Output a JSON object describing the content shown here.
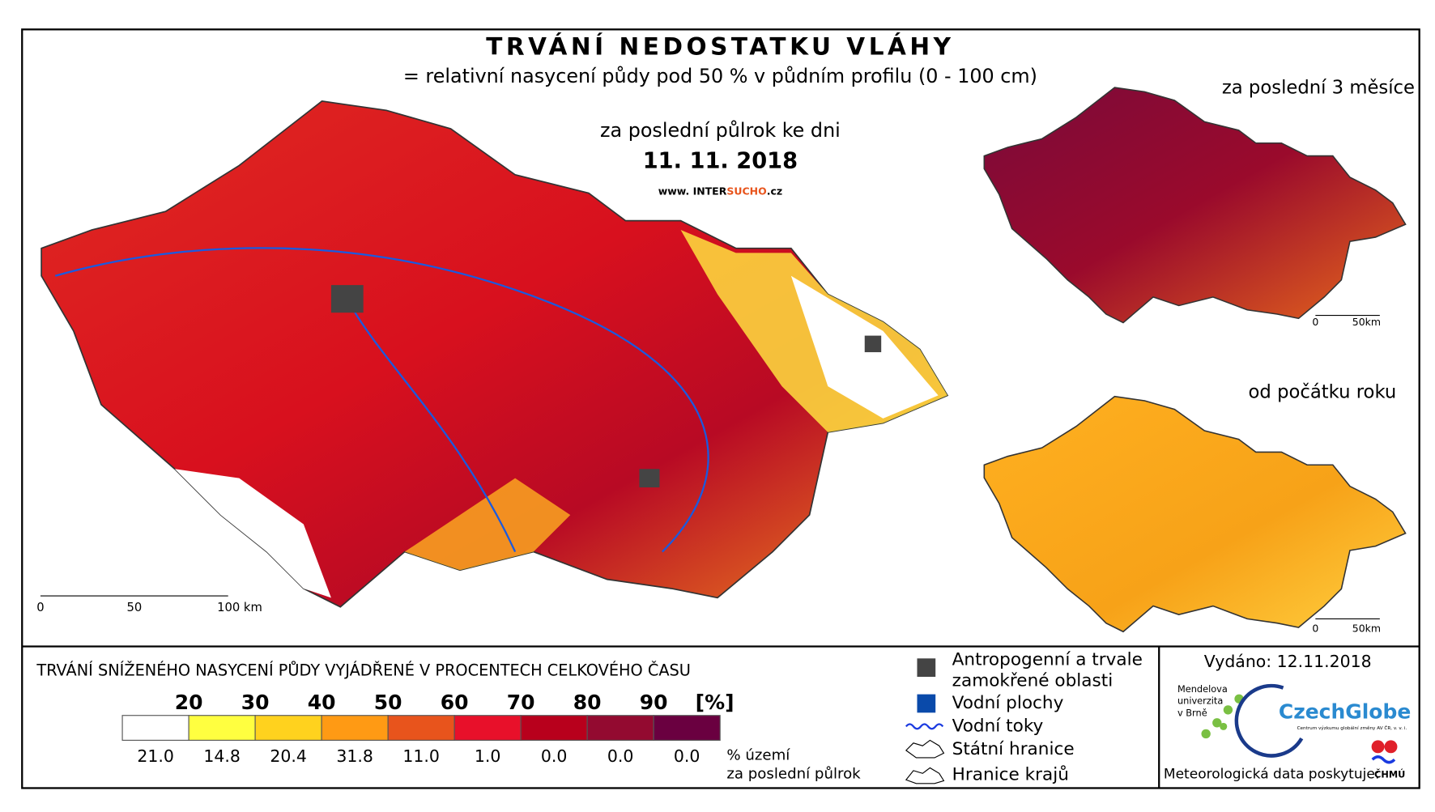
{
  "header": {
    "title": "TRVÁNÍ NEDOSTATKU VLÁHY",
    "subtitle": "= relativní nasycení půdy pod 50 % v půdním profilu (0 - 100 cm)",
    "period": "za poslední půlrok ke dni",
    "date": "11. 11. 2018",
    "web": [
      "www. INTER",
      "SUCHO",
      ".cz"
    ]
  },
  "maps": {
    "main_scale": [
      "0",
      "50",
      "100 km"
    ],
    "inset_top": {
      "title": "za poslední 3 měsíce",
      "scale": [
        "0",
        "50km"
      ]
    },
    "inset_bottom": {
      "title": "od počátku roku",
      "scale": [
        "0",
        "50km"
      ]
    }
  },
  "legend": {
    "heading": "TRVÁNÍ SNÍŽENÉHO NASYCENÍ PŮDY VYJÁDŘENÉ V PROCENTECH CELKOVÉHO ČASU",
    "thresholds": [
      "20",
      "30",
      "40",
      "50",
      "60",
      "70",
      "80",
      "90"
    ],
    "unit": "[%]",
    "colors": [
      "#ffffff",
      "#ffff40",
      "#ffd21e",
      "#ff9a14",
      "#e8541c",
      "#e8102a",
      "#b8001c",
      "#930a30",
      "#6a0040"
    ],
    "shares": [
      "21.0",
      "14.8",
      "20.4",
      "31.8",
      "11.0",
      "1.0",
      "0.0",
      "0.0",
      "0.0"
    ],
    "shares_label": [
      "% území",
      "za poslední půlrok"
    ],
    "symbols": [
      {
        "label": [
          "Antropogenní a trvale",
          "zamokřené oblasti"
        ]
      },
      {
        "label": [
          "Vodní plochy"
        ]
      },
      {
        "label": [
          "Vodní toky"
        ]
      },
      {
        "label": [
          "Státní hranice"
        ]
      },
      {
        "label": [
          "Hranice krajů"
        ]
      }
    ]
  },
  "footer": {
    "issued": "Vydáno: 12.11.2018",
    "mendel": [
      "Mendelova",
      "univerzita",
      "v Brně"
    ],
    "czechglobe": "CzechGlobe",
    "czechglobe_sub": "Centrum výzkumu globální změny AV ČR, v. v. i.",
    "meteo": "Meteorologická data poskytuje:",
    "chmu": "ČHMÚ"
  }
}
